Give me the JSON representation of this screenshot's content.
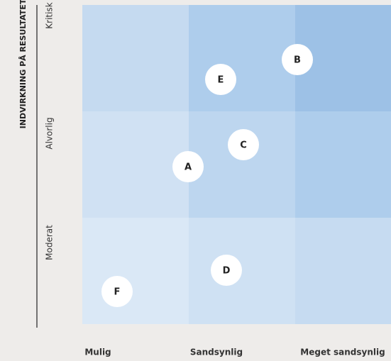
{
  "axis_title": "INDVIRKNING PÅ RESULTATET",
  "rows": [
    "Kritisk",
    "Alvorlig",
    "Moderat"
  ],
  "columns": [
    "Mulig",
    "Sandsynlig",
    "Meget sandsynlig"
  ],
  "nodes": [
    {
      "label": "B"
    },
    {
      "label": "E"
    },
    {
      "label": "C"
    },
    {
      "label": "A"
    },
    {
      "label": "D"
    },
    {
      "label": "F"
    }
  ]
}
